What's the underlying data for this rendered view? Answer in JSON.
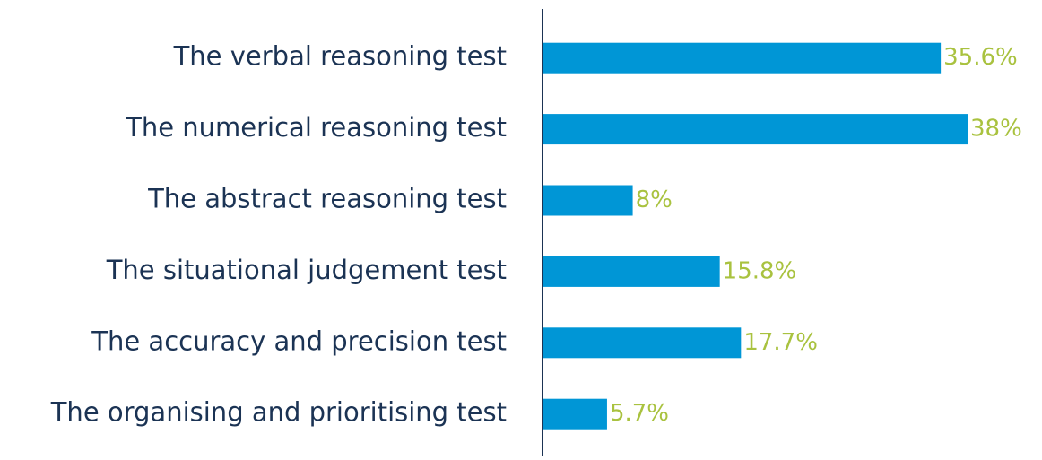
{
  "chart_data": {
    "type": "bar",
    "orientation": "horizontal",
    "categories": [
      "The verbal reasoning test",
      "The numerical reasoning test",
      "The abstract reasoning test",
      "The situational judgement test",
      "The accuracy and precision test",
      "The organising and prioritising test"
    ],
    "values": [
      35.6,
      38,
      8,
      15.8,
      17.7,
      5.7
    ],
    "value_labels": [
      "35.6%",
      "38%",
      "8%",
      "15.8%",
      "17.7%",
      "5.7%"
    ],
    "color": "#0096d6",
    "label_color": "#a9c23f"
  }
}
